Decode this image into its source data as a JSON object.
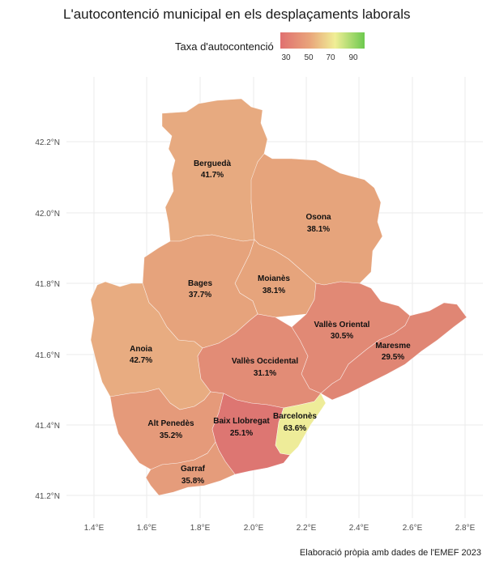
{
  "title": "L'autocontenció municipal en els desplaçaments laborals",
  "legend": {
    "title": "Taxa d'autocontenció",
    "ticks": [
      "30",
      "50",
      "70",
      "90"
    ],
    "colors": [
      "#e07070",
      "#e9a57b",
      "#f0ee96",
      "#6dc94e"
    ]
  },
  "axes": {
    "y_labels": [
      "42.2°N",
      "42.0°N",
      "41.8°N",
      "41.6°N",
      "41.4°N",
      "41.2°N"
    ],
    "x_labels": [
      "1.4°E",
      "1.6°E",
      "1.8°E",
      "2.0°E",
      "2.2°E",
      "2.4°E",
      "2.6°E",
      "2.8°E"
    ]
  },
  "regions": [
    {
      "name": "Berguedà",
      "value": "41.7%",
      "color": "#e7aa80"
    },
    {
      "name": "Osona",
      "value": "38.1%",
      "color": "#e6a47c"
    },
    {
      "name": "Moianès",
      "value": "38.1%",
      "color": "#e6a47c"
    },
    {
      "name": "Bages",
      "value": "37.7%",
      "color": "#e6a37c"
    },
    {
      "name": "Anoia",
      "value": "42.7%",
      "color": "#e8ac81"
    },
    {
      "name": "Vallès Oriental",
      "value": "30.5%",
      "color": "#e18975"
    },
    {
      "name": "Maresme",
      "value": "29.5%",
      "color": "#e08674"
    },
    {
      "name": "Vallès Occidental",
      "value": "31.1%",
      "color": "#e28c76"
    },
    {
      "name": "Alt Penedès",
      "value": "35.2%",
      "color": "#e59a7a"
    },
    {
      "name": "Baix Llobregat",
      "value": "25.1%",
      "color": "#dd7672"
    },
    {
      "name": "Barcelonès",
      "value": "63.6%",
      "color": "#eeec99"
    },
    {
      "name": "Garraf",
      "value": "35.8%",
      "color": "#e59c7b"
    }
  ],
  "caption": "Elaboració pròpia amb dades de l'EMEF 2023"
}
